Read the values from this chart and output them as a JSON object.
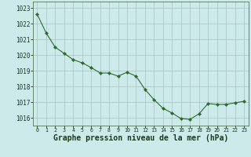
{
  "x": [
    0,
    1,
    2,
    3,
    4,
    5,
    6,
    7,
    8,
    9,
    10,
    11,
    12,
    13,
    14,
    15,
    16,
    17,
    18,
    19,
    20,
    21,
    22,
    23
  ],
  "y": [
    1022.6,
    1021.4,
    1020.5,
    1020.1,
    1019.7,
    1019.5,
    1019.2,
    1018.85,
    1018.85,
    1018.65,
    1018.9,
    1018.65,
    1017.8,
    1017.15,
    1016.6,
    1016.3,
    1015.95,
    1015.9,
    1016.25,
    1016.9,
    1016.85,
    1016.85,
    1016.95,
    1017.05
  ],
  "line_color": "#2d6a2d",
  "marker": "D",
  "marker_size": 2.2,
  "background_color": "#cdeaea",
  "grid_color": "#adc8c8",
  "ylabel_ticks": [
    1016,
    1017,
    1018,
    1019,
    1020,
    1021,
    1022,
    1023
  ],
  "xlabel": "Graphe pression niveau de la mer (hPa)",
  "xlim": [
    -0.5,
    23.5
  ],
  "ylim": [
    1015.5,
    1023.4
  ],
  "tick_label_color": "#1a3a1a",
  "xlabel_color": "#1a3a1a",
  "xlabel_fontsize": 7.0,
  "xlabel_fontweight": "bold",
  "ytick_fontsize": 5.5,
  "xtick_fontsize": 4.8
}
